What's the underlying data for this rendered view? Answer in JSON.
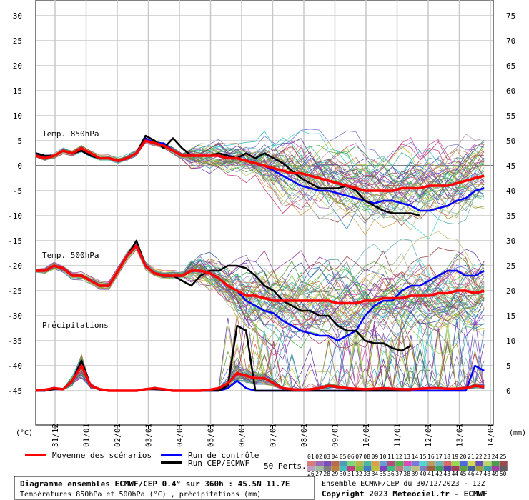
{
  "chart_data": {
    "type": "line",
    "left_axis_unit": "(°C)",
    "right_axis_unit": "(mm)",
    "left_axis_ticks": [
      30,
      25,
      20,
      15,
      10,
      5,
      0,
      -5,
      -10,
      -15,
      -20,
      -25,
      -30,
      -35,
      -40,
      -45
    ],
    "right_axis_ticks": [
      75,
      70,
      65,
      60,
      55,
      50,
      45,
      40,
      35,
      30,
      25,
      20,
      15,
      10,
      5,
      0
    ],
    "left_ylim": [
      -45,
      30
    ],
    "right_ylim": [
      0,
      75
    ],
    "x_categories": [
      "31/12",
      "01/01",
      "02/01",
      "03/01",
      "04/01",
      "05/01",
      "06/01",
      "07/01",
      "08/01",
      "09/01",
      "10/01",
      "11/01",
      "12/01",
      "13/01",
      "14/01"
    ],
    "section_labels": {
      "t850": "Temp. 850hPa",
      "t500": "Temp. 500hPa",
      "precip": "Précipitations"
    },
    "series": [
      {
        "name": "Moyenne des scénarios",
        "color": "#ff0000",
        "t850": [
          2,
          1.5,
          2,
          3,
          2.5,
          3.5,
          2.5,
          1.5,
          1.5,
          1,
          1.5,
          2.5,
          5,
          4.5,
          4,
          3,
          2,
          2,
          2,
          2,
          2,
          1.5,
          1.5,
          1,
          0.5,
          0,
          -0.5,
          -1,
          -1.5,
          -1.5,
          -2,
          -2.5,
          -3,
          -3.5,
          -4,
          -4.5,
          -5,
          -5,
          -5,
          -5,
          -4.5,
          -4.5,
          -4.5,
          -4,
          -4,
          -4,
          -3.5,
          -3,
          -2.5,
          -2
        ],
        "t500": [
          -21,
          -21,
          -20,
          -20.5,
          -22,
          -22,
          -23,
          -24,
          -24,
          -21,
          -18,
          -16,
          -20,
          -21.5,
          -22,
          -22,
          -22,
          -21,
          -21,
          -21.5,
          -22.5,
          -24,
          -25,
          -26,
          -26,
          -26.5,
          -27,
          -27,
          -27,
          -27,
          -27,
          -27,
          -27,
          -27.5,
          -27.5,
          -27.5,
          -27,
          -27,
          -26.5,
          -26.5,
          -26.5,
          -26,
          -26,
          -26,
          -25.5,
          -25.5,
          -25,
          -25,
          -25.5,
          -25
        ],
        "precip": [
          0,
          0.2,
          0.5,
          0.3,
          2,
          5,
          1,
          0.3,
          0,
          0,
          0,
          0,
          0.3,
          0.5,
          0.3,
          0,
          0,
          0,
          0,
          0.2,
          0.5,
          1.5,
          3.5,
          3,
          2.5,
          2.5,
          1.5,
          0.5,
          0.3,
          0.2,
          0.3,
          0.5,
          1,
          0.8,
          0.5,
          0.4,
          0.3,
          0.4,
          0.5,
          0.4,
          0.3,
          0.3,
          0.4,
          0.5,
          0.5,
          0.4,
          0.4,
          0.5,
          1,
          0.8
        ]
      },
      {
        "name": "Run de contrôle",
        "color": "#0000ff",
        "t850": [
          2.5,
          2,
          2,
          3,
          2.5,
          3,
          2,
          1.5,
          1.5,
          1,
          1.5,
          2.5,
          5.5,
          4.5,
          4.5,
          3,
          2,
          2,
          2,
          2,
          2,
          1.5,
          1.5,
          1,
          0.5,
          0,
          -1,
          -2,
          -3,
          -4,
          -4.5,
          -5,
          -5,
          -5.5,
          -6,
          -6.5,
          -7,
          -7.5,
          -7,
          -7,
          -7.5,
          -8,
          -9,
          -9,
          -8.5,
          -8,
          -7,
          -6.5,
          -5,
          -4.5
        ],
        "t500": [
          -21,
          -21,
          -20,
          -20.5,
          -22,
          -22,
          -23,
          -24,
          -24,
          -21,
          -18,
          -16,
          -20,
          -21.5,
          -22,
          -22,
          -22,
          -21,
          -21,
          -21.5,
          -22.5,
          -24,
          -25,
          -27,
          -28,
          -29,
          -29.5,
          -31,
          -32,
          -33,
          -33.5,
          -34,
          -34,
          -35,
          -34,
          -33,
          -30,
          -28,
          -27,
          -27,
          -25,
          -24,
          -24,
          -23,
          -22,
          -21,
          -21,
          -22,
          -22,
          -21
        ],
        "precip": [
          0,
          0,
          0.3,
          0.3,
          2,
          6,
          1,
          0.2,
          0,
          0,
          0,
          0,
          0.3,
          0.3,
          0.2,
          0,
          0,
          0,
          0,
          0,
          0,
          0.5,
          2,
          0.5,
          0,
          0,
          0,
          0,
          0,
          0,
          0,
          0,
          0,
          0,
          0,
          0,
          0,
          0,
          0,
          0,
          0,
          0,
          0,
          0,
          0,
          0,
          0,
          0,
          5,
          4
        ]
      },
      {
        "name": "Run CEP/ECMWF",
        "color": "#000000",
        "t850": [
          2.5,
          2,
          2,
          3,
          2.5,
          3,
          2,
          1.5,
          1.5,
          1,
          1.5,
          2.5,
          6,
          5,
          3.5,
          5.5,
          3.5,
          2,
          2,
          2,
          2.5,
          2,
          1.5,
          2.5,
          1.5,
          2.5,
          1.5,
          0.5,
          -1,
          -2.5,
          -3.5,
          -4.5,
          -4.5,
          -4.5,
          -4,
          -5,
          -7,
          -8,
          -9,
          -9.5,
          -9.5,
          -9.5,
          -10
        ],
        "t500": [
          -21,
          -21,
          -20,
          -20.5,
          -22,
          -22,
          -23,
          -24,
          -24,
          -21,
          -18,
          -15,
          -20,
          -21.5,
          -22,
          -22,
          -23,
          -24,
          -22,
          -21,
          -21,
          -20,
          -20,
          -20.5,
          -22,
          -24,
          -25,
          -27,
          -28,
          -29,
          -29,
          -30,
          -30,
          -32,
          -33,
          -33,
          -35,
          -35.5,
          -35.5,
          -36.5,
          -37,
          -36
        ],
        "precip": [
          0,
          0,
          0.3,
          0.3,
          2,
          6,
          1,
          0.2,
          0,
          0,
          0,
          0,
          0.3,
          0.3,
          0.2,
          0,
          0,
          0,
          0,
          0,
          0,
          1,
          13,
          12,
          0,
          0,
          0,
          0,
          0,
          0,
          0,
          0,
          0,
          0,
          0,
          0,
          0,
          0,
          0,
          0,
          0,
          0
        ]
      }
    ],
    "perturbations_label": "50 Perts.",
    "perturbation_ids_row1": [
      "01",
      "02",
      "03",
      "04",
      "05",
      "06",
      "07",
      "08",
      "09",
      "10",
      "11",
      "12",
      "13",
      "14",
      "15",
      "16",
      "17",
      "18",
      "19",
      "20",
      "21",
      "22",
      "23",
      "24",
      "25"
    ],
    "perturbation_ids_row2": [
      "26",
      "27",
      "28",
      "29",
      "30",
      "31",
      "32",
      "33",
      "34",
      "35",
      "36",
      "37",
      "38",
      "39",
      "40",
      "41",
      "42",
      "43",
      "44",
      "45",
      "46",
      "47",
      "48",
      "49",
      "50"
    ],
    "perturbation_colors": [
      "#d77b7b",
      "#9b6bb7",
      "#7b4db7",
      "#b76b4d",
      "#4d9bb7",
      "#7bd77b",
      "#b7b74d",
      "#4db79b",
      "#d7a04d",
      "#6b9bd7",
      "#b74d7b",
      "#4db74d",
      "#d74db7",
      "#7b7bd7",
      "#4dd7d7",
      "#b79b6b",
      "#6bb7b7",
      "#d76b6b",
      "#9bd74d",
      "#4d6bd7",
      "#d7d74d",
      "#6b4db7",
      "#b7d76b",
      "#4d9b4d",
      "#9b4d4d",
      "#c0a0c0",
      "#a0c0a0",
      "#808080",
      "#c08040",
      "#40c0c0",
      "#c04080",
      "#80c040",
      "#4080c0",
      "#c0c040",
      "#8040c0",
      "#40c080",
      "#c08080",
      "#80c0c0",
      "#c0c080",
      "#8080c0",
      "#a06040",
      "#40a060",
      "#6040a0",
      "#a04060",
      "#60a040",
      "#4060a0",
      "#a0a040",
      "#40a0a0",
      "#a040a0",
      "#606060"
    ]
  },
  "legend": {
    "mean_label": "Moyenne des scénarios",
    "control_label": "Run de contrôle",
    "oper_label": "Run CEP/ECMWF"
  },
  "footer": {
    "title": "Diagramme ensembles ECMWF/CEP 0.4° sur 360h : 45.5N 11.7E",
    "subtitle": "Températures 850hPa et 500hPa (°C) , précipitations (mm)",
    "run_info": "Ensemble ECMWF/CEP du 30/12/2023 - 12Z",
    "copyright": "Copyright 2023 Meteociel.fr - ECMWF"
  }
}
